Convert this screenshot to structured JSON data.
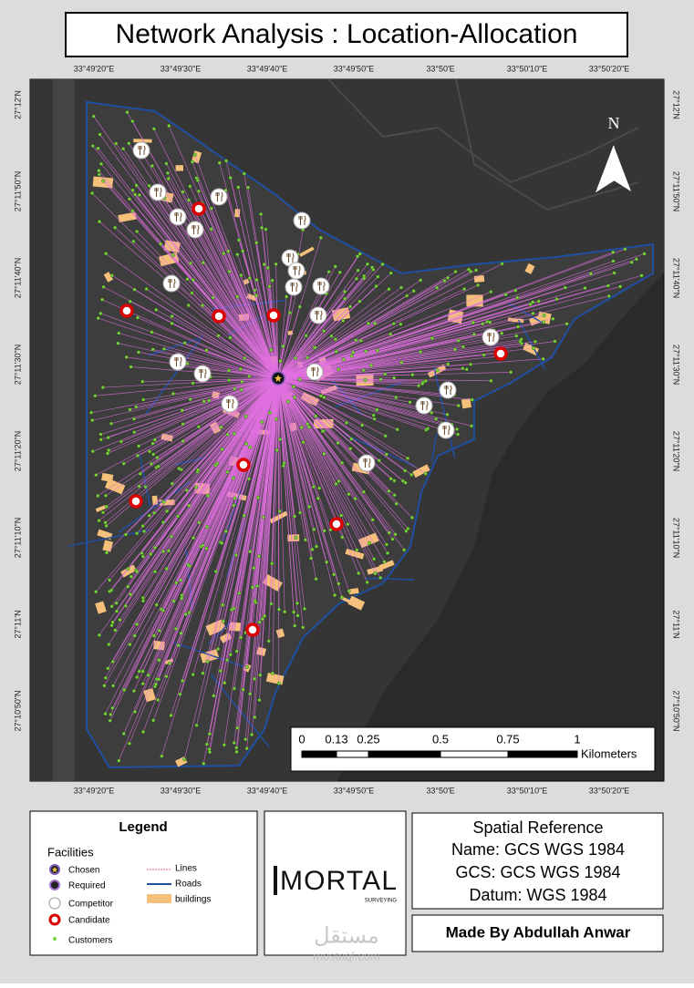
{
  "header": {
    "title": "Network Analysis : Location-Allocation"
  },
  "map": {
    "north": "N",
    "longitude_labels": [
      "33°49'20\"E",
      "33°49'30\"E",
      "33°49'40\"E",
      "33°49'50\"E",
      "33°50'E",
      "33°50'10\"E",
      "33°50'20\"E"
    ],
    "latitude_labels": [
      "27°12'N",
      "27°11'50\"N",
      "27°11'40\"N",
      "27°11'30\"N",
      "27°11'20\"N",
      "27°11'10\"N",
      "27°11'N",
      "27°10'50\"N"
    ],
    "scale_bar": {
      "labels": [
        "0",
        "0.13",
        "0.25",
        "0.5",
        "0.75",
        "1"
      ],
      "unit": "Kilometers"
    },
    "watermark": {
      "arabic": "مستقل",
      "site": "mostaql.com"
    }
  },
  "legend": {
    "title": "Legend",
    "group": "Facilities",
    "items": [
      "Chosen",
      "Required",
      "Competitor",
      "Candidate",
      "Customers"
    ],
    "layers": [
      "Lines",
      "Roads",
      "buildings"
    ]
  },
  "logo": {
    "name": "MORTAL",
    "tagline": "SURVEYING"
  },
  "spatial_reference": {
    "title": "Spatial Reference",
    "lines": [
      "Name: GCS WGS 1984",
      "GCS: GCS WGS 1984",
      "Datum: WGS 1984"
    ]
  },
  "credit": "Made By Abdullah Anwar"
}
